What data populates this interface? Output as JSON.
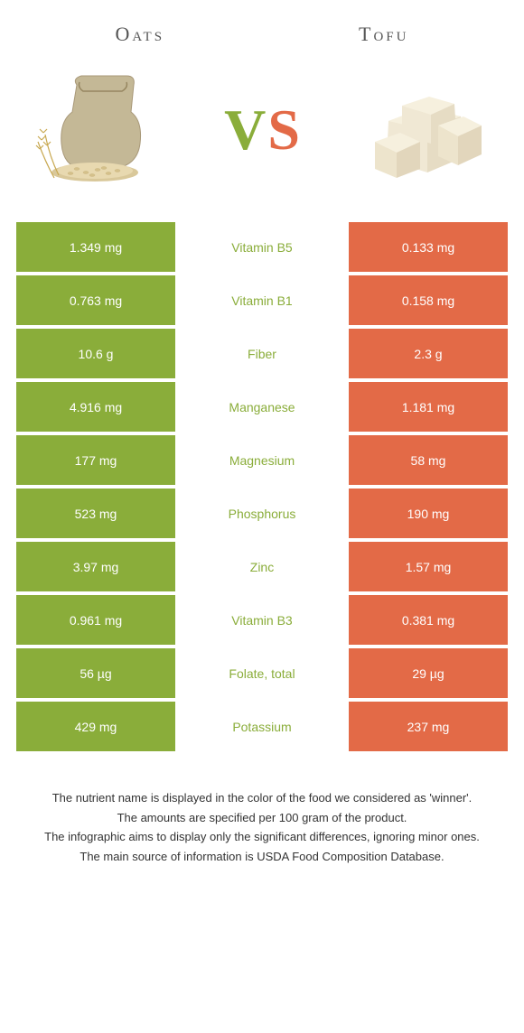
{
  "header": {
    "left": "Oats",
    "right": "Tofu"
  },
  "vs": {
    "v": "V",
    "s": "S",
    "v_color": "#8aad3a",
    "s_color": "#e36a47"
  },
  "colors": {
    "oats": "#8aad3a",
    "tofu": "#e36a47",
    "mid_bg": "#ffffff"
  },
  "rows": [
    {
      "left": "1.349 mg",
      "name": "Vitamin B5",
      "right": "0.133 mg",
      "winner": "oats"
    },
    {
      "left": "0.763 mg",
      "name": "Vitamin B1",
      "right": "0.158 mg",
      "winner": "oats"
    },
    {
      "left": "10.6 g",
      "name": "Fiber",
      "right": "2.3 g",
      "winner": "oats"
    },
    {
      "left": "4.916 mg",
      "name": "Manganese",
      "right": "1.181 mg",
      "winner": "oats"
    },
    {
      "left": "177 mg",
      "name": "Magnesium",
      "right": "58 mg",
      "winner": "oats"
    },
    {
      "left": "523 mg",
      "name": "Phosphorus",
      "right": "190 mg",
      "winner": "oats"
    },
    {
      "left": "3.97 mg",
      "name": "Zinc",
      "right": "1.57 mg",
      "winner": "oats"
    },
    {
      "left": "0.961 mg",
      "name": "Vitamin B3",
      "right": "0.381 mg",
      "winner": "oats"
    },
    {
      "left": "56 µg",
      "name": "Folate, total",
      "right": "29 µg",
      "winner": "oats"
    },
    {
      "left": "429 mg",
      "name": "Potassium",
      "right": "237 mg",
      "winner": "oats"
    }
  ],
  "footer": {
    "line1": "The nutrient name is displayed in the color of the food we considered as 'winner'.",
    "line2": "The amounts are specified per 100 gram of the product.",
    "line3": "The infographic aims to display only the significant differences, ignoring minor ones.",
    "line4": "The main source of information is USDA Food Composition Database."
  }
}
